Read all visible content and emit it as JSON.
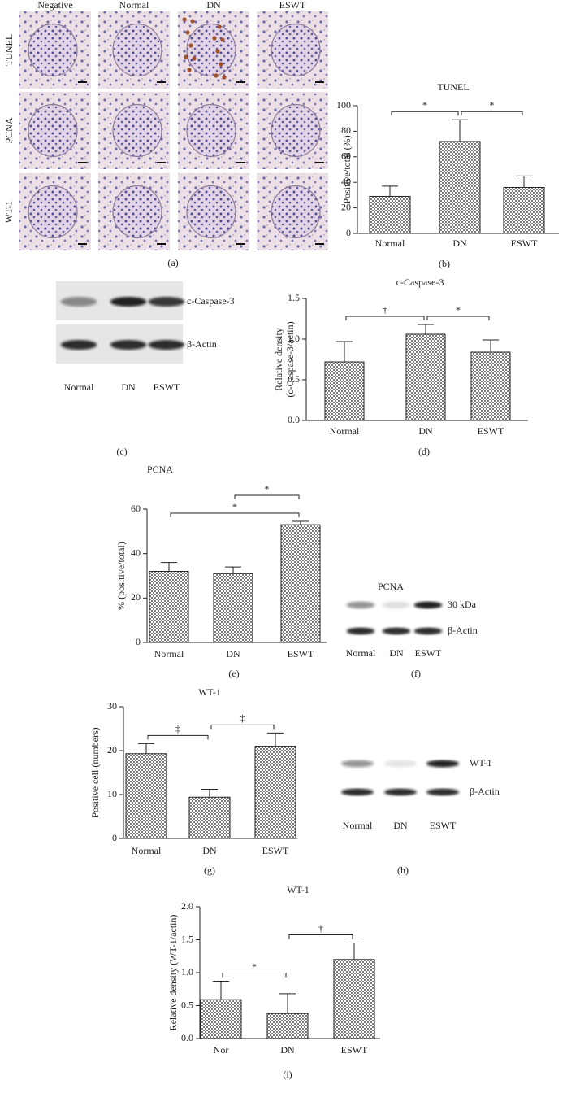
{
  "micrographs": {
    "columns": [
      "Negative",
      "Normal",
      "DN",
      "ESWT"
    ],
    "rows": [
      "TUNEL",
      "PCNA",
      "WT-1"
    ],
    "panel_label": "(a)"
  },
  "blots": [
    {
      "bands": [
        "c-Caspase-3",
        "β-Actin"
      ],
      "lanes": [
        "Normal",
        "DN",
        "ESWT"
      ],
      "panel_label": "(c)"
    },
    {
      "title": "PCNA",
      "bands": [
        "30 kDa",
        "β-Actin"
      ],
      "lanes": [
        "Normal",
        "DN",
        "ESWT"
      ],
      "panel_label": "(f)"
    },
    {
      "bands": [
        "WT-1",
        "β-Actin"
      ],
      "lanes": [
        "Normal",
        "DN",
        "ESWT"
      ],
      "panel_label": "(h)"
    }
  ],
  "chart_data": [
    {
      "type": "bar",
      "title": "TUNEL",
      "ylabel": [
        "Positive/total (%)"
      ],
      "panel_label": "(b)",
      "color": "#7a7a7a",
      "categories": [
        "Normal",
        "DN",
        "ESWT"
      ],
      "values": [
        29,
        72,
        36
      ],
      "errors": [
        8,
        17,
        9
      ],
      "ylim": [
        0,
        100
      ],
      "yticks": [
        0,
        20,
        40,
        60,
        80,
        100
      ],
      "annotations": [
        {
          "text": "*",
          "between": [
            "Normal",
            "DN"
          ]
        },
        {
          "text": "*",
          "between": [
            "DN",
            "ESWT"
          ]
        }
      ]
    },
    {
      "type": "bar",
      "title": "c-Caspase-3",
      "ylabel": [
        "Relative density",
        "(c-Caspase-3/actin)"
      ],
      "panel_label": "(d)",
      "color": "#7a7a7a",
      "categories": [
        "Normal",
        "DN",
        "ESWT"
      ],
      "values": [
        0.72,
        1.06,
        0.84
      ],
      "errors": [
        0.25,
        0.12,
        0.15
      ],
      "ylim": [
        0,
        1.5
      ],
      "yticks": [
        {
          "value": 0,
          "label": "0.0"
        },
        {
          "value": 0.5,
          "label": "0.5"
        },
        {
          "value": 1,
          "label": "1.0"
        },
        {
          "value": 1.5,
          "label": "1.5"
        }
      ],
      "annotations": [
        {
          "text": "†",
          "between": [
            "Normal",
            "DN"
          ]
        },
        {
          "text": "*",
          "between": [
            "DN",
            "ESWT"
          ]
        }
      ]
    },
    {
      "type": "bar",
      "title": "PCNA",
      "ylabel": [
        "% (positive/total)"
      ],
      "panel_label": "(e)",
      "color": "#7a7a7a",
      "categories": [
        "Normal",
        "DN",
        "ESWT"
      ],
      "values": [
        32,
        31,
        53
      ],
      "errors": [
        4,
        3,
        1.5
      ],
      "ylim": [
        0,
        60
      ],
      "yticks": [
        0,
        20,
        40,
        60
      ],
      "annotations": [
        {
          "text": "*",
          "between": [
            "Normal",
            "ESWT"
          ]
        },
        {
          "text": "*",
          "between": [
            "DN",
            "ESWT"
          ]
        }
      ]
    },
    {
      "type": "bar",
      "title": "WT-1",
      "ylabel": [
        "Positive cell (numbers)"
      ],
      "panel_label": "(g)",
      "color": "#7a7a7a",
      "categories": [
        "Normal",
        "DN",
        "ESWT"
      ],
      "values": [
        19.3,
        9.4,
        21
      ],
      "errors": [
        2.3,
        1.8,
        3
      ],
      "ylim": [
        0,
        30
      ],
      "yticks": [
        0,
        10,
        20,
        30
      ],
      "annotations": [
        {
          "text": "‡",
          "between": [
            "Normal",
            "DN"
          ]
        },
        {
          "text": "‡",
          "between": [
            "DN",
            "ESWT"
          ]
        }
      ]
    },
    {
      "type": "bar",
      "title": "WT-1",
      "ylabel": [
        "Relative density (WT-1/actin)"
      ],
      "panel_label": "(i)",
      "color": "#7a7a7a",
      "categories": [
        "Nor",
        "DN",
        "ESWT"
      ],
      "values": [
        0.59,
        0.38,
        1.2
      ],
      "errors": [
        0.28,
        0.3,
        0.25
      ],
      "ylim": [
        0,
        2
      ],
      "yticks": [
        {
          "value": 0,
          "label": "0.0"
        },
        {
          "value": 0.5,
          "label": "0.5"
        },
        {
          "value": 1,
          "label": "1.0"
        },
        {
          "value": 1.5,
          "label": "1.5"
        },
        {
          "value": 2,
          "label": "2.0"
        }
      ],
      "annotations": [
        {
          "text": "*",
          "between": [
            "Nor",
            "DN"
          ]
        },
        {
          "text": "†",
          "between": [
            "DN",
            "ESWT"
          ]
        }
      ]
    }
  ]
}
